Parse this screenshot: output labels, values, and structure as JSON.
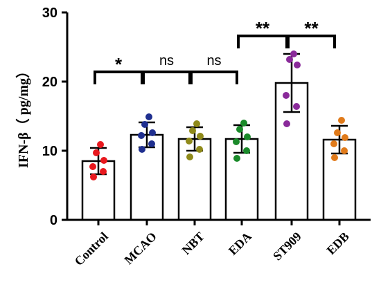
{
  "chart_data": {
    "type": "bar",
    "ylabel": "IFN-β（ pg/mg）",
    "ylim": [
      0,
      30
    ],
    "yticks": [
      "0",
      "10",
      "20",
      "30"
    ],
    "categories": [
      "Control",
      "MCAO",
      "NBT",
      "EDA",
      "ST909",
      "EDB"
    ],
    "values": [
      8.5,
      12.3,
      11.7,
      11.7,
      19.8,
      11.6
    ],
    "sd": [
      1.9,
      1.8,
      1.7,
      2.0,
      4.2,
      2.0
    ],
    "point_colors": [
      "#e8181e",
      "#1f2f8f",
      "#8f8a1a",
      "#1a8a2a",
      "#8a2a9a",
      "#e07a1a"
    ],
    "points": [
      [
        6.2,
        7.0,
        7.7,
        8.6,
        9.7,
        10.9
      ],
      [
        10.2,
        11.0,
        12.2,
        12.6,
        13.8,
        14.9
      ],
      [
        9.1,
        10.2,
        11.4,
        12.1,
        12.9,
        13.9
      ],
      [
        8.9,
        10.0,
        11.3,
        12.0,
        13.1,
        14.0
      ],
      [
        13.9,
        16.4,
        18.0,
        22.4,
        23.2,
        24.0
      ],
      [
        9.0,
        10.0,
        11.0,
        11.9,
        12.6,
        14.4
      ]
    ],
    "significance": [
      {
        "from": 0,
        "to": 1,
        "label": "*"
      },
      {
        "from": 1,
        "to": 2,
        "label": "ns"
      },
      {
        "from": 2,
        "to": 3,
        "label": "ns"
      },
      {
        "from": 3,
        "to": 4,
        "label": "**"
      },
      {
        "from": 4,
        "to": 5,
        "label": "**"
      }
    ]
  }
}
